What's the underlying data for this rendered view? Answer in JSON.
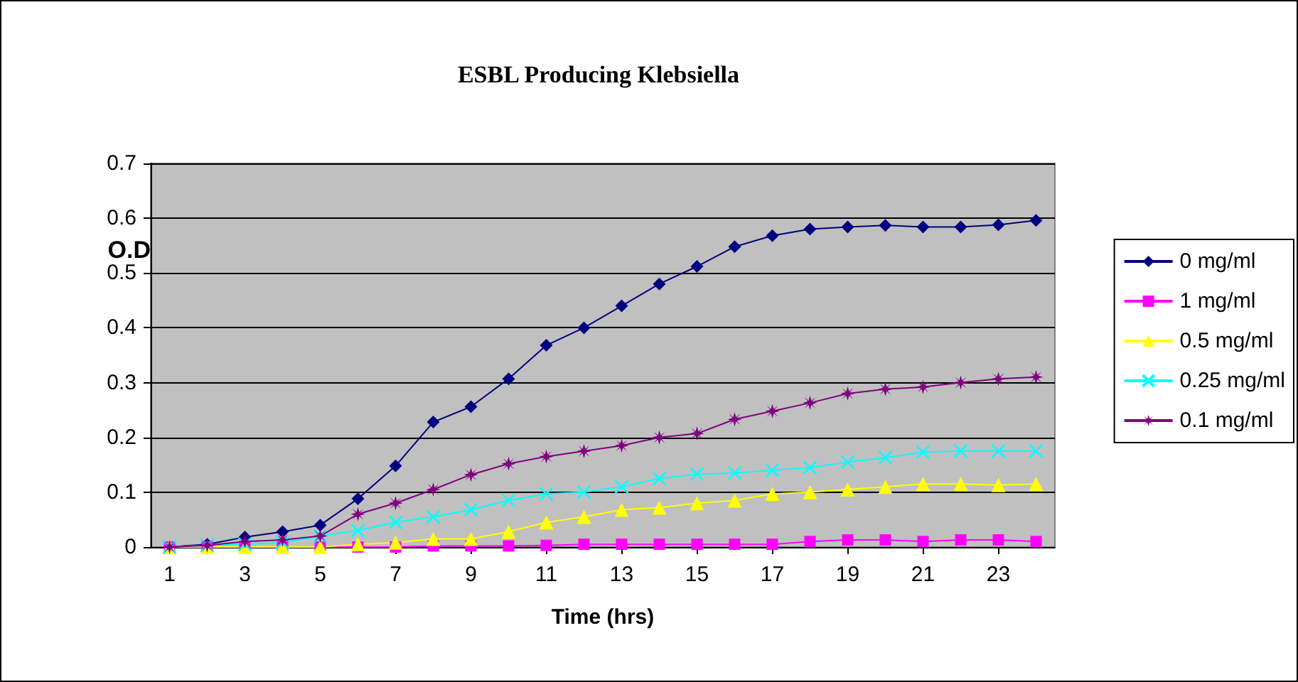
{
  "chart_data": {
    "type": "line",
    "title": "ESBL Producing Klebsiella",
    "xlabel": "Time (hrs)",
    "ylabel": "O.D",
    "x": [
      1,
      2,
      3,
      4,
      5,
      6,
      7,
      8,
      9,
      10,
      11,
      12,
      13,
      14,
      15,
      16,
      17,
      18,
      19,
      20,
      21,
      22,
      23,
      24
    ],
    "xlim": [
      0.5,
      24.5
    ],
    "xticks": [
      1,
      3,
      5,
      7,
      9,
      11,
      13,
      15,
      17,
      19,
      21,
      23
    ],
    "ylim": [
      0,
      0.7
    ],
    "yticks": [
      0,
      0.1,
      0.2,
      0.3,
      0.4,
      0.5,
      0.6,
      0.7
    ],
    "grid": "y",
    "legend": "right",
    "line_style": "solid",
    "series": [
      {
        "name": "0 mg/ml",
        "color": "#000080",
        "marker": "diamond",
        "values": [
          0,
          0.005,
          0.018,
          0.028,
          0.04,
          0.088,
          0.148,
          0.228,
          0.256,
          0.307,
          0.368,
          0.4,
          0.44,
          0.48,
          0.512,
          0.548,
          0.568,
          0.58,
          0.584,
          0.587,
          0.584,
          0.584,
          0.588,
          0.596
        ]
      },
      {
        "name": "1 mg/ml",
        "color": "#ff00ff",
        "marker": "square",
        "values": [
          0,
          0,
          0,
          0,
          0,
          0,
          0,
          0.002,
          0.002,
          0.002,
          0.003,
          0.005,
          0.005,
          0.005,
          0.005,
          0.005,
          0.005,
          0.01,
          0.013,
          0.013,
          0.01,
          0.013,
          0.013,
          0.01
        ]
      },
      {
        "name": "0.5 mg/ml",
        "color": "#ffff00",
        "marker": "triangle",
        "values": [
          0,
          0,
          0,
          0,
          0,
          0.005,
          0.008,
          0.015,
          0.015,
          0.028,
          0.045,
          0.055,
          0.068,
          0.072,
          0.08,
          0.085,
          0.097,
          0.1,
          0.105,
          0.11,
          0.115,
          0.115,
          0.113,
          0.115
        ]
      },
      {
        "name": "0.25 mg/ml",
        "color": "#00ffff",
        "marker": "cross",
        "values": [
          0,
          0.003,
          0.005,
          0.008,
          0.02,
          0.03,
          0.045,
          0.055,
          0.068,
          0.085,
          0.097,
          0.1,
          0.11,
          0.125,
          0.133,
          0.135,
          0.14,
          0.145,
          0.155,
          0.163,
          0.173,
          0.175,
          0.175,
          0.175
        ]
      },
      {
        "name": "0.1 mg/ml",
        "color": "#800080",
        "marker": "star",
        "values": [
          0,
          0.003,
          0.01,
          0.013,
          0.02,
          0.06,
          0.08,
          0.105,
          0.132,
          0.152,
          0.165,
          0.175,
          0.185,
          0.2,
          0.207,
          0.233,
          0.248,
          0.263,
          0.28,
          0.288,
          0.292,
          0.3,
          0.307,
          0.31
        ]
      }
    ]
  }
}
